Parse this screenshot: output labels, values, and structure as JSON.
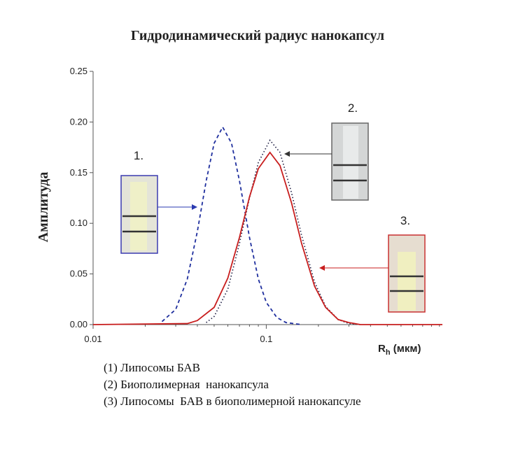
{
  "chart_data": {
    "type": "line",
    "title": "Гидродинамический радиус нанокапсул",
    "ylabel": "Амплитуда",
    "xlabel_parts": [
      "R",
      "h",
      " (мкм)"
    ],
    "log_x": true,
    "xlim": [
      0.01,
      1.04
    ],
    "xticks": [
      0.01,
      0.1
    ],
    "xminorticks": [
      0.02,
      0.03,
      0.04,
      0.05,
      0.06,
      0.07,
      0.08,
      0.09,
      0.2,
      0.3,
      0.4,
      0.5,
      0.6,
      0.7,
      0.8,
      0.9,
      1
    ],
    "ylim": [
      0,
      0.25
    ],
    "yticks": [
      {
        "value": 0,
        "label": "0.00"
      },
      {
        "value": 0.05,
        "label": "0.05"
      },
      {
        "value": 0.1,
        "label": "0.10"
      },
      {
        "value": 0.15,
        "label": "0.15"
      },
      {
        "value": 0.2,
        "label": "0.20"
      },
      {
        "value": 0.25,
        "label": "0.25"
      }
    ],
    "series": [
      {
        "color": "#1f2f9e",
        "dash": "dashed",
        "x": [
          0.025,
          0.03,
          0.035,
          0.04,
          0.045,
          0.05,
          0.056,
          0.063,
          0.07,
          0.08,
          0.09,
          0.1,
          0.115,
          0.13,
          0.16
        ],
        "values": [
          0.003,
          0.015,
          0.045,
          0.092,
          0.142,
          0.179,
          0.195,
          0.179,
          0.142,
          0.086,
          0.045,
          0.022,
          0.007,
          0.002,
          0
        ]
      },
      {
        "color": "#1a1a40",
        "dash": "dotted",
        "x": [
          0.045,
          0.05,
          0.06,
          0.07,
          0.08,
          0.09,
          0.105,
          0.12,
          0.14,
          0.16,
          0.19,
          0.22,
          0.26,
          0.3,
          0.35
        ],
        "values": [
          0.002,
          0.008,
          0.035,
          0.08,
          0.125,
          0.16,
          0.182,
          0.17,
          0.13,
          0.088,
          0.042,
          0.018,
          0.005,
          0.001,
          0
        ]
      },
      {
        "color": "#c81e1e",
        "dash": "solid",
        "x": [
          0.01,
          0.035,
          0.04,
          0.05,
          0.06,
          0.07,
          0.08,
          0.09,
          0.105,
          0.12,
          0.14,
          0.16,
          0.19,
          0.22,
          0.26,
          0.3,
          0.35,
          1.04
        ],
        "values": [
          0,
          0.001,
          0.004,
          0.017,
          0.046,
          0.086,
          0.126,
          0.154,
          0.17,
          0.157,
          0.12,
          0.08,
          0.038,
          0.017,
          0.005,
          0.002,
          0,
          0
        ]
      }
    ],
    "annotations": [
      "1.",
      "2.",
      "3."
    ],
    "notes": [
      "(1) Липосомы БАВ",
      "(2) Биополимерная  нанокапсула",
      "(3) Липосомы  БАВ в биополимерной нанокапсуле"
    ]
  }
}
